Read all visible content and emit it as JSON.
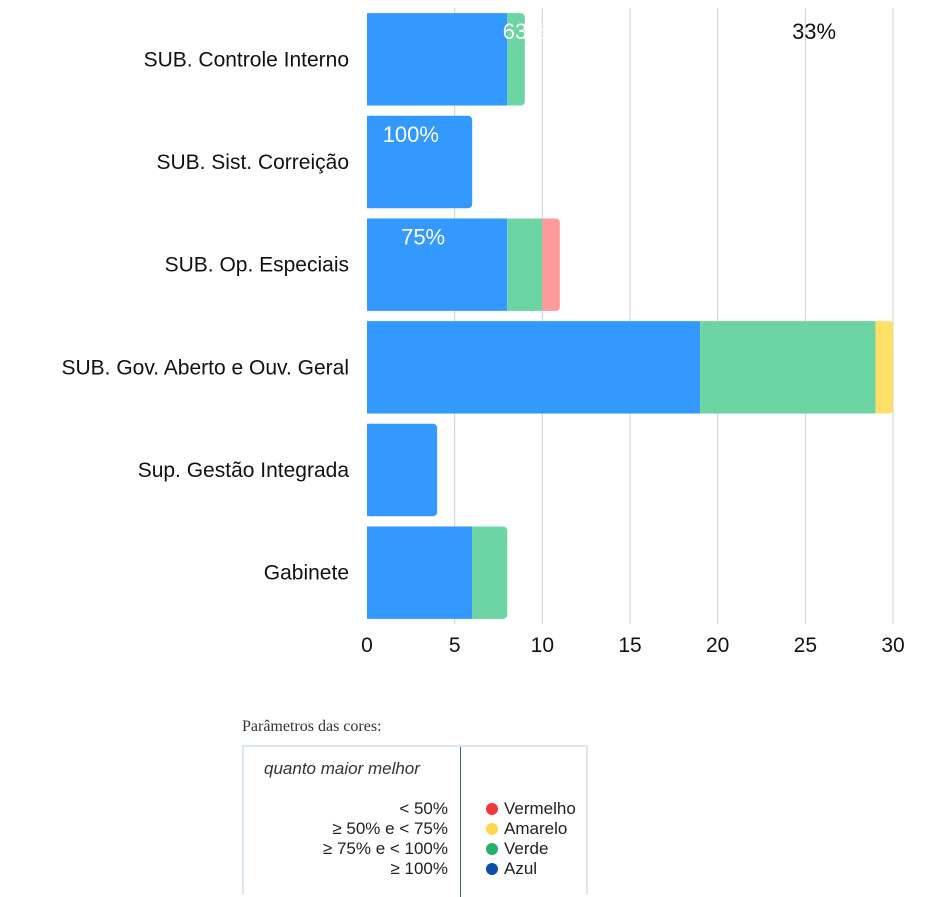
{
  "chart_data": {
    "type": "bar",
    "orientation": "horizontal",
    "stacked": true,
    "categories": [
      "SUB. Controle Interno",
      "SUB. Sist. Correição",
      "SUB. Op. Especiais",
      "SUB. Gov. Aberto e Ouv. Geral",
      "Sup. Gestão Integrada",
      "Gabinete"
    ],
    "series": [
      {
        "color": "#3399ff",
        "values": [
          8,
          6,
          8,
          19,
          4,
          6
        ]
      },
      {
        "color": "#6dd5a3",
        "values": [
          1,
          0,
          2,
          10,
          0,
          2
        ]
      },
      {
        "color": "#ff9a9a",
        "values": [
          0,
          0,
          1,
          0,
          0,
          0
        ]
      },
      {
        "color": "#ffe066",
        "values": [
          0,
          0,
          0,
          1,
          0,
          0
        ]
      }
    ],
    "xlim": [
      0,
      30
    ],
    "xticks": [
      "0",
      "5",
      "10",
      "15",
      "20",
      "25",
      "30"
    ],
    "grid": "vertical",
    "annotations": [
      {
        "text": "63%",
        "category": "SUB. Controle Interno",
        "x": 9,
        "color": "#ffffff"
      },
      {
        "text": "33%",
        "category": "SUB. Controle Interno",
        "x": 25.5,
        "color": "#111111"
      },
      {
        "text": "100%",
        "category": "SUB. Sist. Correição",
        "x": 2.5,
        "color": "#ffffff"
      },
      {
        "text": "75%",
        "category": "SUB. Op. Especiais",
        "x": 3.2,
        "color": "#ffffff"
      }
    ]
  },
  "legend": {
    "title": "Parâmetros das cores:",
    "note": "quanto maior melhor",
    "items": [
      {
        "range": "< 50%",
        "name": "Vermelho",
        "color": "#f03a3a"
      },
      {
        "range": "≥ 50% e < 75%",
        "name": "Amarelo",
        "color": "#ffd84d"
      },
      {
        "range": "≥ 75% e < 100%",
        "name": "Verde",
        "color": "#22b36a"
      },
      {
        "range": "≥ 100%",
        "name": "Azul",
        "color": "#0d4fa8"
      }
    ]
  }
}
